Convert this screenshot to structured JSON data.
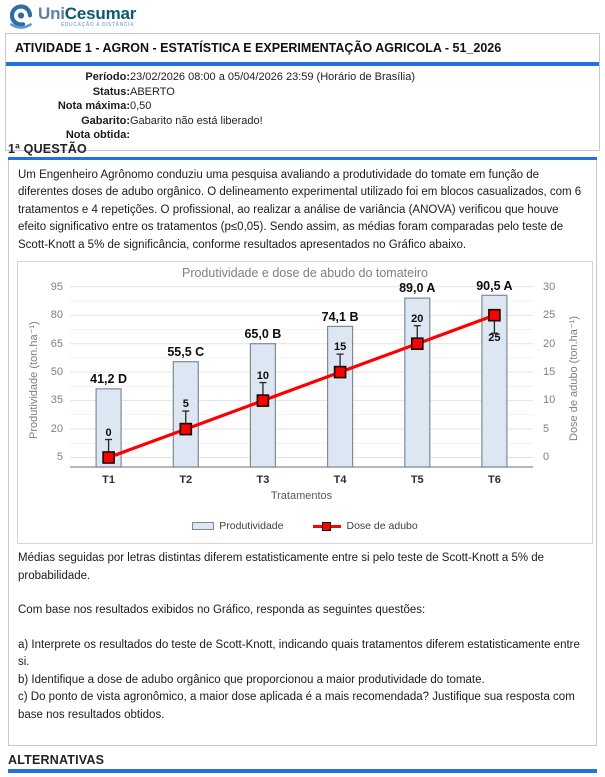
{
  "logo": {
    "brand_uni": "Uni",
    "brand_rest": "Cesumar",
    "tagline": "EDUCAÇÃO A DISTÂNCIA"
  },
  "header": {
    "title": "ATIVIDADE 1 - AGRON - ESTATÍSTICA E EXPERIMENTAÇÃO AGRICOLA - 51_2026"
  },
  "info": {
    "rows": [
      {
        "label": "Período:",
        "value": "23/02/2026 08:00 a 05/04/2026 23:59 (Horário de Brasília)"
      },
      {
        "label": "Status:",
        "value": "ABERTO"
      },
      {
        "label": "Nota máxima:",
        "value": "0,50"
      },
      {
        "label": "Gabarito:",
        "value": "Gabarito não está liberado!"
      },
      {
        "label": "Nota obtida:",
        "value": ""
      }
    ]
  },
  "question": {
    "heading": "1ª QUESTÃO",
    "intro": "Um Engenheiro Agrônomo conduziu uma pesquisa avaliando a produtividade do tomate em função de diferentes doses de adubo orgânico. O delineamento experimental utilizado foi em blocos casualizados, com 6 tratamentos e 4 repetições. O profissional, ao realizar a análise de variância (ANOVA) verificou que houve efeito significativo entre os tratamentos (p≤0,05). Sendo assim, as médias foram comparadas pelo teste de Scott-Knott a 5% de significância, conforme resultados apresentados no Gráfico abaixo.",
    "note": "Médias seguidas por letras distintas diferem estatisticamente entre si pelo teste de Scott-Knott a 5% de probabilidade.",
    "prompt": "Com base nos resultados exibidos no Gráfico, responda as seguintes questões:",
    "items": [
      "a) Interprete os resultados do teste de Scott-Knott, indicando quais tratamentos diferem estatisticamente entre si.",
      "b) Identifique a dose de adubo orgânico que proporcionou a maior produtividade do tomate.",
      "c) Do ponto de vista agronômico, a maior dose aplicada é a mais recomendada? Justifique sua resposta com base nos resultados obtidos."
    ]
  },
  "alternatives": {
    "heading": "ALTERNATIVAS"
  },
  "chart_data": {
    "type": "bar",
    "combo": "bar + line (secondary axis)",
    "title": "Produtividade e dose de abudo do tomateiro",
    "categories": [
      "T1",
      "T2",
      "T3",
      "T4",
      "T5",
      "T6"
    ],
    "series": [
      {
        "name": "Produtividade",
        "type": "bar",
        "axis": "left",
        "values": [
          41.2,
          55.5,
          65.0,
          74.1,
          89.0,
          90.5
        ],
        "point_labels": [
          "41,2 D",
          "55,5 C",
          "65,0 B",
          "74,1 B",
          "89,0 A",
          "90,5 A"
        ],
        "fill": "#dce7f3",
        "border": "#808a94"
      },
      {
        "name": "Dose de adubo",
        "type": "line",
        "axis": "right",
        "values": [
          0,
          5,
          10,
          15,
          20,
          25
        ],
        "point_labels": [
          "0",
          "5",
          "10",
          "15",
          "20",
          "25"
        ],
        "color": "#fe0000",
        "marker": "square",
        "marker_border": "#1a0000",
        "error_bar_direction": [
          "up",
          "up",
          "up",
          "up",
          "up",
          "down"
        ]
      }
    ],
    "xlabel": "Tratamentos",
    "left_axis": {
      "title": "Produtividade (ton.ha⁻¹)",
      "ticks": [
        5,
        20,
        35,
        50,
        65,
        80,
        95
      ],
      "min": 0,
      "max": 97.5
    },
    "right_axis": {
      "title": "Dose de adubo (ton.ha⁻¹)",
      "ticks": [
        0,
        5,
        10,
        15,
        20,
        25,
        30
      ],
      "mapping": "left_value = 3*dose + 5"
    },
    "grid": true,
    "legend_position": "bottom"
  }
}
